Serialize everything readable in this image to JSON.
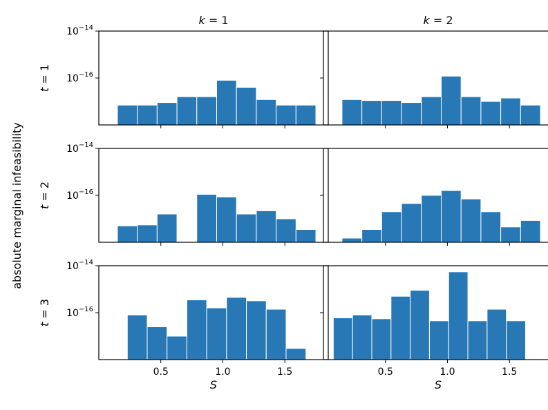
{
  "chart_data": {
    "type": "bar",
    "y_scale": "log",
    "ylim": [
      1e-18,
      1e-14
    ],
    "xlim": [
      0.0,
      1.85
    ],
    "ylabel": "absolute marginal infeasibility",
    "xlabel": "S",
    "y_ticks": [
      {
        "value": 1e-14,
        "base": "10",
        "exp": "−14"
      },
      {
        "value": 1e-16,
        "base": "10",
        "exp": "−16"
      }
    ],
    "x_ticks": [
      {
        "value": 0.5,
        "label": "0.5"
      },
      {
        "value": 1.0,
        "label": "1.0"
      },
      {
        "value": 1.5,
        "label": "1.5"
      }
    ],
    "col_titles": [
      {
        "prefix": "k",
        "value": "= 1"
      },
      {
        "prefix": "k",
        "value": "= 2"
      }
    ],
    "row_titles": [
      {
        "prefix": "t",
        "value": "= 1"
      },
      {
        "prefix": "t",
        "value": "= 2"
      },
      {
        "prefix": "t",
        "value": "= 3"
      }
    ],
    "panels": [
      {
        "t": 1,
        "k": 1,
        "x_start": 0.15,
        "bin_width": 0.16,
        "values": [
          7e-18,
          7e-18,
          9e-18,
          1.6e-17,
          1.6e-17,
          8e-17,
          4e-17,
          1.2e-17,
          7e-18,
          7e-18
        ]
      },
      {
        "t": 1,
        "k": 2,
        "x_start": 0.15,
        "bin_width": 0.16,
        "values": [
          1.2e-17,
          1.1e-17,
          1.1e-17,
          9e-18,
          1.6e-17,
          1.2e-16,
          1.6e-17,
          1e-17,
          1.4e-17,
          7e-18
        ]
      },
      {
        "t": 2,
        "k": 1,
        "x_start": 0.15,
        "bin_width": 0.16,
        "values": [
          5e-18,
          5.5e-18,
          1.6e-17,
          null,
          1.1e-16,
          8.5e-17,
          1.6e-17,
          2.2e-17,
          1e-17,
          3.5e-18
        ]
      },
      {
        "t": 2,
        "k": 2,
        "x_start": 0.15,
        "bin_width": 0.16,
        "values": [
          1.5e-18,
          3.5e-18,
          2e-17,
          4.5e-17,
          1e-16,
          1.6e-16,
          7e-17,
          2e-17,
          4.5e-18,
          8.5e-18
        ]
      },
      {
        "t": 3,
        "k": 1,
        "x_start": 0.23,
        "bin_width": 0.16,
        "values": [
          8e-17,
          2.5e-17,
          1e-17,
          3.5e-16,
          1.6e-16,
          4.5e-16,
          3.2e-16,
          1.4e-16,
          3e-18
        ]
      },
      {
        "t": 3,
        "k": 2,
        "x_start": 0.08,
        "bin_width": 0.155,
        "values": [
          6e-17,
          8e-17,
          5.5e-17,
          5e-16,
          9e-16,
          4.5e-17,
          5.5e-15,
          4.5e-17,
          1.4e-16,
          4.5e-17
        ]
      }
    ],
    "colors": {
      "bar": "#2878b5",
      "bar_edge": "#ffffff",
      "axis": "#000000"
    }
  }
}
